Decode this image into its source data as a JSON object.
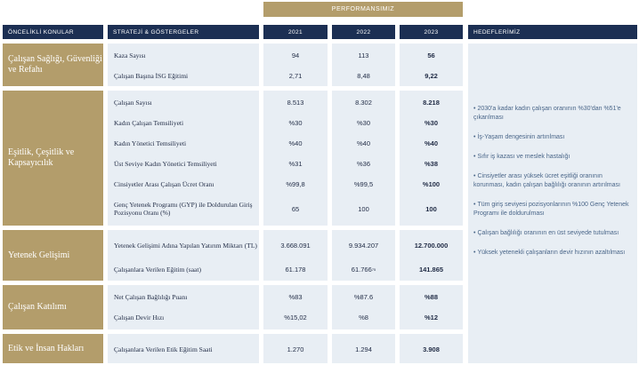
{
  "header": {
    "performance": "PERFORMANSIMIZ",
    "topics": "ÖNCELİKLİ KONULAR",
    "strategy": "STRATEJİ & GÖSTERGELER",
    "y2021": "2021",
    "y2022": "2022",
    "y2023": "2023",
    "goals": "HEDEFLERİMİZ"
  },
  "topics": [
    "Çalışan Sağlığı, Güvenliği ve Refahı",
    "Eşitlik, Çeşitlik ve Kapsayıcılık",
    "Yetenek Gelişimi",
    "Çalışan Katılımı",
    "Etik ve İnsan Hakları"
  ],
  "rows": [
    {
      "metric": "Kaza Sayısı",
      "v2021": "94",
      "v2022": "113",
      "v2023": "56"
    },
    {
      "metric": "Çalışan Başına İSG Eğitimi",
      "v2021": "2,71",
      "v2022": "8,48",
      "v2023": "9,22"
    },
    {
      "metric": "Çalışan Sayısı",
      "v2021": "8.513",
      "v2022": "8.302",
      "v2023": "8.218"
    },
    {
      "metric": "Kadın Çalışan Temsiliyeti",
      "v2021": "%30",
      "v2022": "%30",
      "v2023": "%30"
    },
    {
      "metric": "Kadın Yönetici Temsiliyeti",
      "v2021": "%40",
      "v2022": "%40",
      "v2023": "%40"
    },
    {
      "metric": "Üst Seviye Kadın Yönetici Temsiliyeti",
      "v2021": "%31",
      "v2022": "%36",
      "v2023": "%38"
    },
    {
      "metric": "Cinsiyetler Arası Çalışan Ücret Oranı",
      "v2021": "%99,8",
      "v2022": "%99,5",
      "v2023": "%100"
    },
    {
      "metric": "Genç Yetenek Programı (GYP) ile Doldurulan Giriş Pozisyonu Oranı (%)",
      "v2021": "65",
      "v2022": "100",
      "v2023": "100"
    },
    {
      "metric": "Yetenek Gelişimi Adına Yapılan Yatırım Miktarı (TL)",
      "v2021": "3.668.091",
      "v2022": "9.934.207",
      "v2023": "12.700.000"
    },
    {
      "metric": "Çalışanlara Verilen Eğitim (saat)",
      "v2021": "61.178",
      "v2022": "61.766",
      "v2022_note": "75",
      "v2023": "141.865"
    },
    {
      "metric": "Net Çalışan Bağlılığı Puanı",
      "v2021": "%83",
      "v2022": "%87.6",
      "v2023": "%88"
    },
    {
      "metric": "Çalışan Devir Hızı",
      "v2021": "%15,02",
      "v2022": "%8",
      "v2023": "%12"
    },
    {
      "metric": "Çalışanlara Verilen Etik Eğitim Saati",
      "v2021": "1.270",
      "v2022": "1.294",
      "v2023": "3.908"
    }
  ],
  "goals": [
    "2030'a kadar kadın çalışan oranının %30'dan %51'e çıkarılması",
    "İş-Yaşam dengesinin artırılması",
    "Sıfır iş kazası ve meslek hastalığı",
    "Cinsiyetler arası yüksek ücret eşitliği oranının korunması, kadın çalışan bağlılığı oranının artırılması",
    "Tüm giriş seviyesi pozisyonlarının %100 Genç Yetenek Programı ile doldurulması",
    "Çalışan bağlılığı oranının en üst seviyede tutulması",
    "Yüksek yetenekli çalışanların devir hızının azaltılması"
  ],
  "colors": {
    "gold": "#b39d6b",
    "navy": "#1c2f53",
    "cell": "#e8eef4",
    "goal_text": "#4a6689"
  }
}
